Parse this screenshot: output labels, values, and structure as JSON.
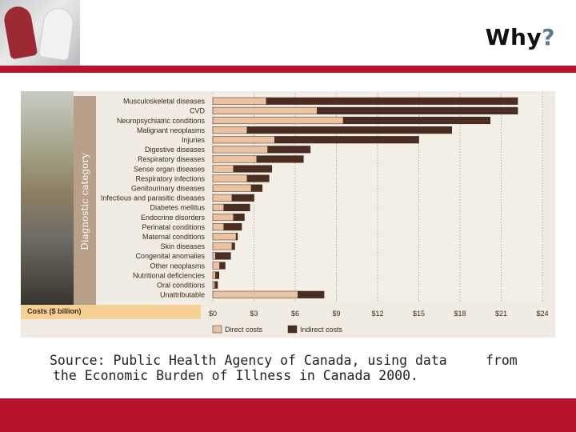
{
  "slide": {
    "title_main": "Why",
    "title_mark": "?",
    "source_line1": "Source: Public Health Agency of Canada, using data",
    "source_from": "from",
    "source_line2": "the Economic Burden of Illness in Canada 2000.",
    "colors": {
      "accent_red": "#b5132e",
      "title_mark": "#5d7b8e"
    }
  },
  "figure": {
    "photo_icon": "running-shoes-photo",
    "people_icon": "crowd-photo",
    "axis_title": "Diagnostic category",
    "cost_label": "Costs ($ billion)"
  },
  "chart_data": {
    "type": "bar",
    "orientation": "horizontal",
    "stacked": true,
    "categories": [
      "Musculoskeletal diseases",
      "CVD",
      "Neuropsychiatric conditions",
      "Malignant neoplasms",
      "Injuries",
      "Digestive diseases",
      "Respiratory diseases",
      "Sense organ diseases",
      "Respiratory infections",
      "Genitourinary diseases",
      "Infectious and parasitic diseases",
      "Diabetes mellitus",
      "Endocrine disorders",
      "Perinatal conditions",
      "Maternal conditions",
      "Skin diseases",
      "Congenital anomalies",
      "Other neoplasms",
      "Nutritional deficiencies",
      "Oral conditions",
      "Unattributable"
    ],
    "series": [
      {
        "name": "Direct costs",
        "color": "#ebc3a3",
        "values": [
          3.9,
          7.6,
          9.5,
          2.5,
          4.5,
          4.0,
          3.2,
          1.5,
          2.5,
          2.8,
          1.4,
          0.8,
          1.5,
          0.8,
          1.7,
          1.4,
          0.2,
          0.5,
          0.2,
          0.15,
          6.2
        ]
      },
      {
        "name": "Indirect costs",
        "color": "#4b2d21",
        "values": [
          18.3,
          14.6,
          10.7,
          14.9,
          10.5,
          3.1,
          3.4,
          2.8,
          1.6,
          0.8,
          1.6,
          1.9,
          0.8,
          1.3,
          0.1,
          0.2,
          1.1,
          0.4,
          0.25,
          0.2,
          1.9
        ]
      }
    ],
    "x_ticks": [
      "$0",
      "$3",
      "$6",
      "$9",
      "$12",
      "$15",
      "$18",
      "$21",
      "$24"
    ],
    "xlim": [
      0,
      24
    ],
    "grid": true,
    "legend_placement": "bottom"
  }
}
